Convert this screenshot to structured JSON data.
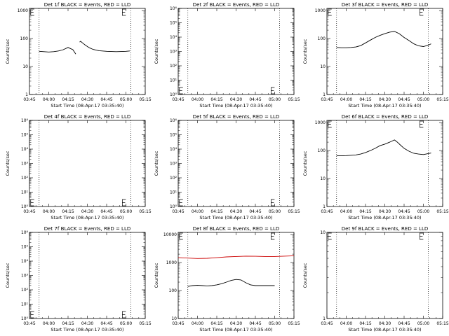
{
  "chart_data": [
    {
      "type": "line",
      "title": "Det 1f BLACK = Events, RED = LLD",
      "xlabel": "Start Time (08-Apr-17 03:35:40)",
      "ylabel": "Counts/sec",
      "x_ticks": [
        "03:45",
        "04:00",
        "04:15",
        "04:30",
        "04:45",
        "05:00",
        "05:15"
      ],
      "xlim": [
        0,
        120
      ],
      "yscale": "log",
      "y_ticks": [
        {
          "v": 1,
          "label": "1"
        },
        {
          "v": 10,
          "label": "10"
        },
        {
          "v": 100,
          "label": "100"
        },
        {
          "v": 1000,
          "label": "1000"
        }
      ],
      "ylim": [
        1,
        1200
      ],
      "vlines": [
        10,
        105
      ],
      "series": [
        {
          "color": "#000000",
          "x": [
            10,
            15,
            20,
            25,
            30,
            35,
            40,
            45,
            48
          ],
          "y": [
            35,
            34,
            33,
            34,
            36,
            40,
            48,
            40,
            28
          ]
        },
        {
          "color": "#000000",
          "x": [
            52,
            53,
            55,
            58,
            62,
            66,
            72,
            80,
            90,
            100,
            104
          ],
          "y": [
            75,
            80,
            70,
            58,
            47,
            41,
            37,
            35,
            34,
            35,
            36
          ]
        }
      ]
    },
    {
      "type": "line",
      "title": "Det 2f BLACK = Events, RED = LLD",
      "xlabel": "Start Time (08-Apr-17 03:35:40)",
      "ylabel": "Counts/sec",
      "x_ticks": [
        "03:45",
        "04:00",
        "04:15",
        "04:30",
        "04:45",
        "05:00",
        "05:15"
      ],
      "xlim": [
        0,
        120
      ],
      "yscale": "log",
      "y_ticks": [
        {
          "v": 1,
          "label": "10⁰"
        },
        {
          "v": 10,
          "label": "10¹"
        },
        {
          "v": 100,
          "label": "10²"
        },
        {
          "v": 1000,
          "label": "10³"
        },
        {
          "v": 10000,
          "label": "10⁴"
        },
        {
          "v": 100000,
          "label": "10⁵"
        },
        {
          "v": 1000000,
          "label": "10⁶"
        }
      ],
      "ylim": [
        1,
        1000000
      ],
      "vlines": [
        10,
        105
      ],
      "series": []
    },
    {
      "type": "line",
      "title": "Det 3f BLACK = Events, RED = LLD",
      "xlabel": "Start Time (08-Apr-17 03:35:40)",
      "ylabel": "Counts/sec",
      "x_ticks": [
        "03:45",
        "04:00",
        "04:15",
        "04:30",
        "04:45",
        "05:00",
        "05:15"
      ],
      "xlim": [
        0,
        120
      ],
      "yscale": "log",
      "y_ticks": [
        {
          "v": 1,
          "label": "1"
        },
        {
          "v": 10,
          "label": "10"
        },
        {
          "v": 100,
          "label": "100"
        },
        {
          "v": 1000,
          "label": "1000"
        }
      ],
      "ylim": [
        1,
        1200
      ],
      "vlines": [
        10,
        105
      ],
      "series": [
        {
          "color": "#000000",
          "x": [
            10,
            15,
            20,
            25,
            30,
            35,
            40,
            45,
            50,
            55,
            60,
            65,
            70,
            75,
            80,
            85,
            90,
            95,
            100,
            105,
            108
          ],
          "y": [
            48,
            47,
            47,
            48,
            50,
            56,
            70,
            88,
            110,
            130,
            150,
            170,
            180,
            150,
            110,
            85,
            65,
            55,
            52,
            58,
            65
          ]
        }
      ]
    },
    {
      "type": "line",
      "title": "Det 4f BLACK = Events, RED = LLD",
      "xlabel": "Start Time (08-Apr-17 03:35:40)",
      "ylabel": "Counts/sec",
      "x_ticks": [
        "03:45",
        "04:00",
        "04:15",
        "04:30",
        "04:45",
        "05:00",
        "05:15"
      ],
      "xlim": [
        0,
        120
      ],
      "yscale": "log",
      "y_ticks": [
        {
          "v": 1,
          "label": "10⁰"
        },
        {
          "v": 10,
          "label": "10¹"
        },
        {
          "v": 100,
          "label": "10²"
        },
        {
          "v": 1000,
          "label": "10³"
        },
        {
          "v": 10000,
          "label": "10⁴"
        },
        {
          "v": 100000,
          "label": "10⁵"
        },
        {
          "v": 1000000,
          "label": "10⁶"
        }
      ],
      "ylim": [
        1,
        1000000
      ],
      "vlines": [
        10,
        105
      ],
      "series": []
    },
    {
      "type": "line",
      "title": "Det 5f BLACK = Events, RED = LLD",
      "xlabel": "Start Time (08-Apr-17 03:35:40)",
      "ylabel": "Counts/sec",
      "x_ticks": [
        "03:45",
        "04:00",
        "04:15",
        "04:30",
        "04:45",
        "05:00",
        "05:15"
      ],
      "xlim": [
        0,
        120
      ],
      "yscale": "log",
      "y_ticks": [
        {
          "v": 1,
          "label": "10⁰"
        },
        {
          "v": 10,
          "label": "10¹"
        },
        {
          "v": 100,
          "label": "10²"
        },
        {
          "v": 1000,
          "label": "10³"
        },
        {
          "v": 10000,
          "label": "10⁴"
        },
        {
          "v": 100000,
          "label": "10⁵"
        },
        {
          "v": 1000000,
          "label": "10⁶"
        }
      ],
      "ylim": [
        1,
        1000000
      ],
      "vlines": [
        10,
        105
      ],
      "series": []
    },
    {
      "type": "line",
      "title": "Det 6f BLACK = Events, RED = LLD",
      "xlabel": "Start Time (08-Apr-17 03:35:40)",
      "ylabel": "Counts/sec",
      "x_ticks": [
        "03:45",
        "04:00",
        "04:15",
        "04:30",
        "04:45",
        "05:00",
        "05:15"
      ],
      "xlim": [
        0,
        120
      ],
      "yscale": "log",
      "y_ticks": [
        {
          "v": 1,
          "label": "1"
        },
        {
          "v": 10,
          "label": "10"
        },
        {
          "v": 100,
          "label": "100"
        },
        {
          "v": 1000,
          "label": "1000"
        }
      ],
      "ylim": [
        1,
        1200
      ],
      "vlines": [
        10,
        105
      ],
      "series": [
        {
          "color": "#000000",
          "x": [
            10,
            15,
            20,
            25,
            30,
            35,
            40,
            45,
            50,
            55,
            60,
            65,
            70,
            73,
            76,
            80,
            85,
            90,
            95,
            100,
            105,
            108
          ],
          "y": [
            65,
            65,
            66,
            68,
            70,
            75,
            85,
            100,
            120,
            150,
            170,
            200,
            240,
            200,
            160,
            120,
            95,
            80,
            75,
            72,
            78,
            82
          ]
        }
      ]
    },
    {
      "type": "line",
      "title": "Det 7f BLACK = Events, RED = LLD",
      "xlabel": "Start Time (08-Apr-17 03:35:40)",
      "ylabel": "Counts/sec",
      "x_ticks": [
        "03:45",
        "04:00",
        "04:15",
        "04:30",
        "04:45",
        "05:00",
        "05:15"
      ],
      "xlim": [
        0,
        120
      ],
      "yscale": "log",
      "y_ticks": [
        {
          "v": 1,
          "label": "10⁰"
        },
        {
          "v": 10,
          "label": "10¹"
        },
        {
          "v": 100,
          "label": "10²"
        },
        {
          "v": 1000,
          "label": "10³"
        },
        {
          "v": 10000,
          "label": "10⁴"
        },
        {
          "v": 100000,
          "label": "10⁵"
        },
        {
          "v": 1000000,
          "label": "10⁶"
        }
      ],
      "ylim": [
        1,
        1000000
      ],
      "vlines": [
        10,
        105
      ],
      "series": []
    },
    {
      "type": "line",
      "title": "Det 8f BLACK = Events, RED = LLD",
      "xlabel": "Start Time (08-Apr-17 03:35:40)",
      "ylabel": "Counts/sec",
      "x_ticks": [
        "03:45",
        "04:00",
        "04:15",
        "04:30",
        "04:45",
        "05:00",
        "05:15"
      ],
      "xlim": [
        0,
        120
      ],
      "yscale": "log",
      "y_ticks": [
        {
          "v": 10,
          "label": "10"
        },
        {
          "v": 100,
          "label": "100"
        },
        {
          "v": 1000,
          "label": "1000"
        },
        {
          "v": 10000,
          "label": "10000"
        }
      ],
      "ylim": [
        10,
        12000
      ],
      "vlines": [
        10,
        105
      ],
      "series": [
        {
          "color": "#cc0000",
          "x": [
            0,
            10,
            20,
            30,
            40,
            50,
            60,
            70,
            80,
            90,
            100,
            110,
            120
          ],
          "y": [
            1500,
            1450,
            1400,
            1420,
            1500,
            1600,
            1650,
            1700,
            1680,
            1650,
            1650,
            1700,
            1750
          ]
        },
        {
          "color": "#000000",
          "x": [
            10,
            15,
            20,
            25,
            30,
            35,
            40,
            45,
            50,
            55,
            60,
            65,
            70,
            75,
            80,
            90,
            100
          ],
          "y": [
            140,
            150,
            155,
            150,
            145,
            150,
            160,
            175,
            200,
            230,
            250,
            240,
            190,
            160,
            150,
            150,
            150
          ]
        }
      ]
    },
    {
      "type": "line",
      "title": "Det 9f BLACK = Events, RED = LLD",
      "xlabel": "Start Time (08-Apr-17 03:35:40)",
      "ylabel": "Counts/sec",
      "x_ticks": [
        "03:45",
        "04:00",
        "04:15",
        "04:30",
        "04:45",
        "05:00",
        "05:15"
      ],
      "xlim": [
        0,
        120
      ],
      "yscale": "log",
      "y_ticks": [
        {
          "v": 1,
          "label": "1"
        },
        {
          "v": 10,
          "label": "10"
        }
      ],
      "ylim": [
        1,
        10
      ],
      "vlines": [
        10,
        105
      ],
      "series": []
    }
  ]
}
